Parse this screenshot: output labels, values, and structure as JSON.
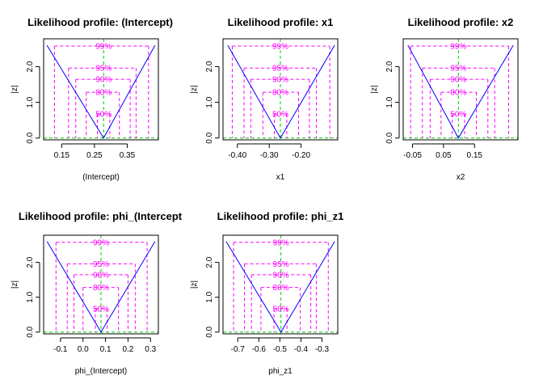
{
  "chart_data": [
    {
      "type": "line",
      "title": "Likelihood profile: (Intercept)",
      "xlabel": "(Intercept)",
      "ylabel": "|z|",
      "xlim": [
        0.095,
        0.445
      ],
      "ylim": [
        -0.05,
        2.78
      ],
      "xticks": [
        0.15,
        0.25,
        0.35
      ],
      "xtick_labels": [
        "0.15",
        "0.25",
        "0.35"
      ],
      "yticks": [
        0.0,
        1.0,
        2.0
      ],
      "ytick_labels": [
        "0.0",
        "1.0",
        "2.0"
      ],
      "x": [
        0.105,
        0.278,
        0.435
      ],
      "y": [
        2.6,
        0.0,
        2.6
      ],
      "estimate": 0.278,
      "lower_ci": [
        0.259,
        0.225,
        0.193,
        0.171,
        0.128
      ],
      "upper_ci": [
        0.297,
        0.326,
        0.359,
        0.377,
        0.415
      ]
    },
    {
      "type": "line",
      "title": "Likelihood profile: x1",
      "xlabel": "x1",
      "ylabel": "|z|",
      "xlim": [
        -0.445,
        -0.085
      ],
      "ylim": [
        -0.05,
        2.78
      ],
      "xticks": [
        -0.4,
        -0.3,
        -0.2
      ],
      "xtick_labels": [
        "-0.40",
        "-0.30",
        "-0.20"
      ],
      "yticks": [
        0.0,
        1.0,
        2.0
      ],
      "ytick_labels": [
        "0.0",
        "1.0",
        "2.0"
      ],
      "x": [
        -0.43,
        -0.265,
        -0.095
      ],
      "y": [
        2.6,
        0.0,
        2.6
      ],
      "estimate": -0.265,
      "lower_ci": [
        -0.284,
        -0.32,
        -0.358,
        -0.379,
        -0.416
      ],
      "upper_ci": [
        -0.245,
        -0.208,
        -0.174,
        -0.152,
        -0.11
      ]
    },
    {
      "type": "line",
      "title": "Likelihood profile: x2",
      "xlabel": "x2",
      "ylabel": "|z|",
      "xlim": [
        -0.08,
        0.29
      ],
      "ylim": [
        -0.05,
        2.78
      ],
      "xticks": [
        -0.05,
        0.05,
        0.15
      ],
      "xtick_labels": [
        "-0.05",
        "0.05",
        "0.15"
      ],
      "yticks": [
        0.0,
        1.0,
        2.0
      ],
      "ytick_labels": [
        "0.0",
        "1.0",
        "2.0"
      ],
      "x": [
        -0.065,
        0.098,
        0.275
      ],
      "y": [
        2.6,
        0.0,
        2.6
      ],
      "estimate": 0.098,
      "lower_ci": [
        0.078,
        0.042,
        0.007,
        -0.018,
        -0.056
      ],
      "upper_ci": [
        0.118,
        0.156,
        0.193,
        0.215,
        0.26
      ]
    },
    {
      "type": "line",
      "title": "Likelihood profile: phi_(Intercept",
      "xlabel": "phi_(Intercept)",
      "ylabel": "|z|",
      "xlim": [
        -0.175,
        0.335
      ],
      "ylim": [
        -0.05,
        2.78
      ],
      "xticks": [
        -0.1,
        0.0,
        0.1,
        0.2,
        0.3
      ],
      "xtick_labels": [
        "-0.1",
        "0.0",
        "0.1",
        "0.2",
        "0.3"
      ],
      "yticks": [
        0.0,
        1.0,
        2.0
      ],
      "ytick_labels": [
        "0.0",
        "1.0",
        "2.0"
      ],
      "x": [
        -0.16,
        0.08,
        0.32
      ],
      "y": [
        2.6,
        0.0,
        2.6
      ],
      "estimate": 0.08,
      "lower_ci": [
        0.055,
        0.0,
        -0.04,
        -0.07,
        -0.12
      ],
      "upper_ci": [
        0.107,
        0.158,
        0.2,
        0.232,
        0.285
      ]
    },
    {
      "type": "line",
      "title": "Likelihood profile: phi_z1",
      "xlabel": "phi_z1",
      "ylabel": "|z|",
      "xlim": [
        -0.77,
        -0.225
      ],
      "ylim": [
        -0.05,
        2.78
      ],
      "xticks": [
        -0.7,
        -0.6,
        -0.5,
        -0.4,
        -0.3
      ],
      "xtick_labels": [
        "-0.7",
        "-0.6",
        "-0.5",
        "-0.4",
        "-0.3"
      ],
      "yticks": [
        0.0,
        1.0,
        2.0
      ],
      "ytick_labels": [
        "0.0",
        "1.0",
        "2.0"
      ],
      "x": [
        -0.755,
        -0.495,
        -0.24
      ],
      "y": [
        2.6,
        0.0,
        2.6
      ],
      "estimate": -0.495,
      "lower_ci": [
        -0.528,
        -0.59,
        -0.635,
        -0.668,
        -0.72
      ],
      "upper_ci": [
        -0.466,
        -0.403,
        -0.353,
        -0.327,
        -0.27
      ]
    }
  ],
  "levels": [
    {
      "label": "50%",
      "z": 0.674
    },
    {
      "label": "80%",
      "z": 1.282
    },
    {
      "label": "90%",
      "z": 1.645
    },
    {
      "label": "95%",
      "z": 1.96
    },
    {
      "label": "99%",
      "z": 2.576
    }
  ],
  "colors": {
    "profile_line": "#0000ff",
    "level_lines": "#ff00ff",
    "estimate_line": "#00cc00",
    "axis": "#000000"
  }
}
